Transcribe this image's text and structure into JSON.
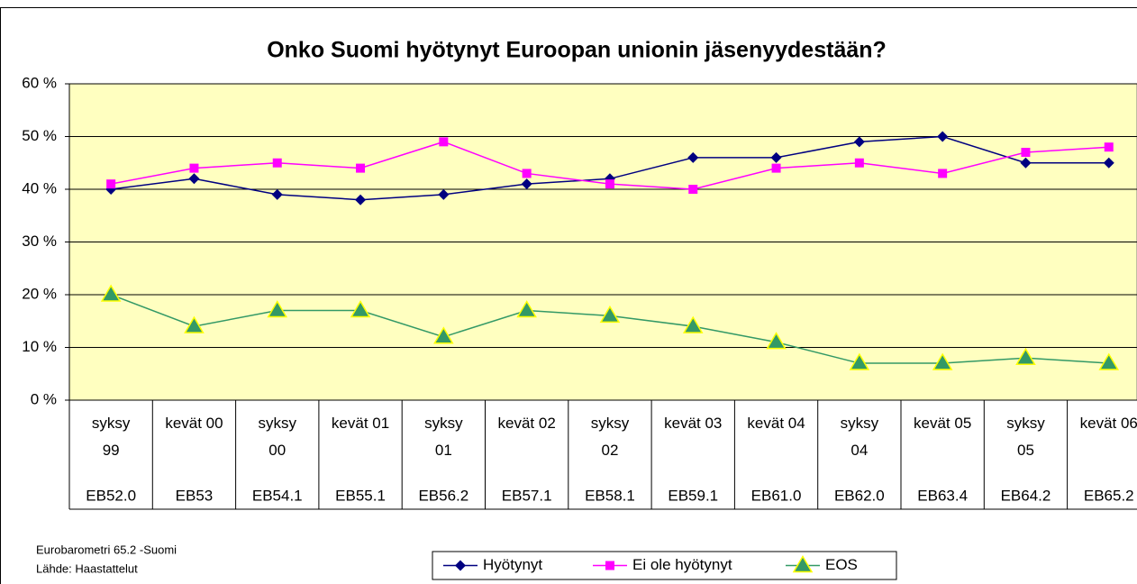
{
  "chart_data": {
    "type": "line",
    "title": "Onko Suomi hyötynyt Euroopan unionin jäsenyydestään?",
    "categories": [
      "syksy\n99",
      "kevät 00",
      "syksy\n00",
      "kevät 01",
      "syksy\n01",
      "kevät 02",
      "syksy\n02",
      "kevät 03",
      "kevät 04",
      "syksy\n04",
      "kevät 05",
      "syksy\n05",
      "kevät 06"
    ],
    "survey_codes": [
      "EB52.0",
      "EB53",
      "EB54.1",
      "EB55.1",
      "EB56.2",
      "EB57.1",
      "EB58.1",
      "EB59.1",
      "EB61.0",
      "EB62.0",
      "EB63.4",
      "EB64.2",
      "EB65.2"
    ],
    "series": [
      {
        "name": "Hyötynyt",
        "color": "#000080",
        "marker": "diamond",
        "values": [
          40,
          42,
          39,
          38,
          39,
          41,
          42,
          46,
          46,
          49,
          50,
          45,
          45
        ]
      },
      {
        "name": "Ei ole hyötynyt",
        "color": "#ff00ff",
        "marker": "square",
        "values": [
          41,
          44,
          45,
          44,
          49,
          43,
          41,
          40,
          44,
          45,
          43,
          47,
          48
        ]
      },
      {
        "name": "EOS",
        "color": "#339966",
        "marker": "triangle",
        "values": [
          20,
          14,
          17,
          17,
          12,
          17,
          16,
          14,
          11,
          7,
          7,
          8,
          7
        ]
      }
    ],
    "ylim": [
      0,
      60
    ],
    "yticks": [
      {
        "value": 0,
        "label": "0 %"
      },
      {
        "value": 10,
        "label": "10 %"
      },
      {
        "value": 20,
        "label": "20 %"
      },
      {
        "value": 30,
        "label": "30 %"
      },
      {
        "value": 40,
        "label": "40 %"
      },
      {
        "value": 50,
        "label": "50 %"
      },
      {
        "value": 60,
        "label": "60 %"
      }
    ],
    "grid": true,
    "legend": "bottom",
    "notes": [
      "Eurobarometri 65.2 -Suomi",
      "Lähde: Haastattelut"
    ]
  }
}
